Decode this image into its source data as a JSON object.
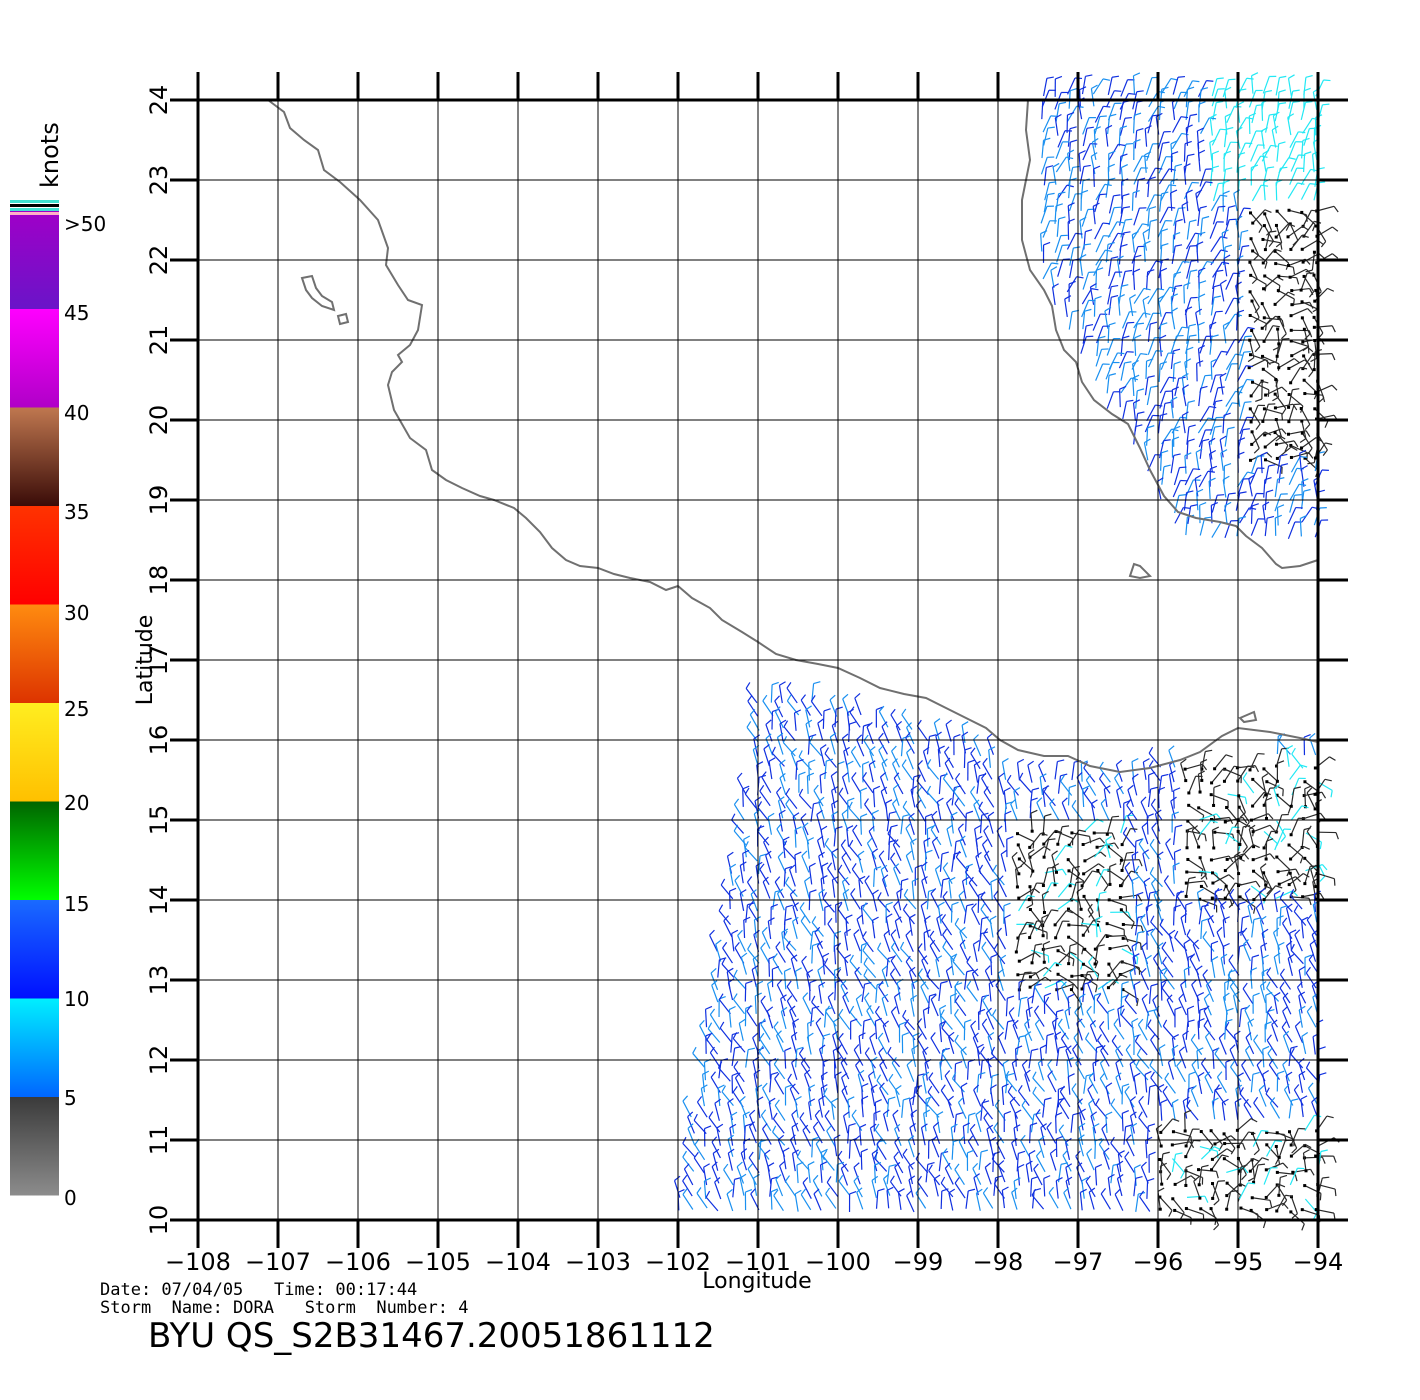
{
  "colorbar": {
    "unit": "knots",
    "labels": [
      ">50",
      "45",
      "40",
      "35",
      "30",
      "25",
      "20",
      "15",
      "10",
      "5",
      "0"
    ],
    "bands": [
      {
        "from": 0,
        "to": 5,
        "top": "#3a3a3a",
        "bottom": "#8c8c8c"
      },
      {
        "from": 5,
        "to": 10,
        "top": "#00f0ff",
        "bottom": "#0066ff"
      },
      {
        "from": 10,
        "to": 15,
        "top": "#1a6bff",
        "bottom": "#0010ff"
      },
      {
        "from": 15,
        "to": 20,
        "top": "#006400",
        "bottom": "#00ff00"
      },
      {
        "from": 20,
        "to": 25,
        "top": "#ffee20",
        "bottom": "#ffc000"
      },
      {
        "from": 25,
        "to": 30,
        "top": "#ff8c10",
        "bottom": "#dd3300"
      },
      {
        "from": 30,
        "to": 35,
        "top": "#ff3300",
        "bottom": "#ff0000"
      },
      {
        "from": 35,
        "to": 40,
        "top": "#c07850",
        "bottom": "#3a0c08"
      },
      {
        "from": 40,
        "to": 45,
        "top": "#ff00ff",
        "bottom": "#b000c8"
      },
      {
        "from": 45,
        "to": 50,
        "top": "#a000c8",
        "bottom": "#6a14c8"
      }
    ]
  },
  "map": {
    "x_axis_label": "Longitude",
    "y_axis_label": "Latitude",
    "lon_ticks": [
      "−108",
      "−107",
      "−106",
      "−105",
      "−104",
      "−103",
      "−102",
      "−101",
      "−100",
      "−99",
      "−98",
      "−97",
      "−96",
      "−95",
      "−94"
    ],
    "lat_ticks": [
      "10",
      "11",
      "12",
      "13",
      "14",
      "15",
      "16",
      "17",
      "18",
      "19",
      "20",
      "21",
      "22",
      "23",
      "24"
    ],
    "lon_range": [
      -108,
      -94
    ],
    "lat_range": [
      10,
      24
    ],
    "coastline_color": "#707070",
    "grid_color": "#000000"
  },
  "footer": {
    "date_line": "Date: 07/04/05   Time: 00:17:44",
    "storm_line": "Storm  Name: DORA   Storm  Number: 4",
    "product_id": "BYU  QS_S2B31467.20051861112"
  }
}
